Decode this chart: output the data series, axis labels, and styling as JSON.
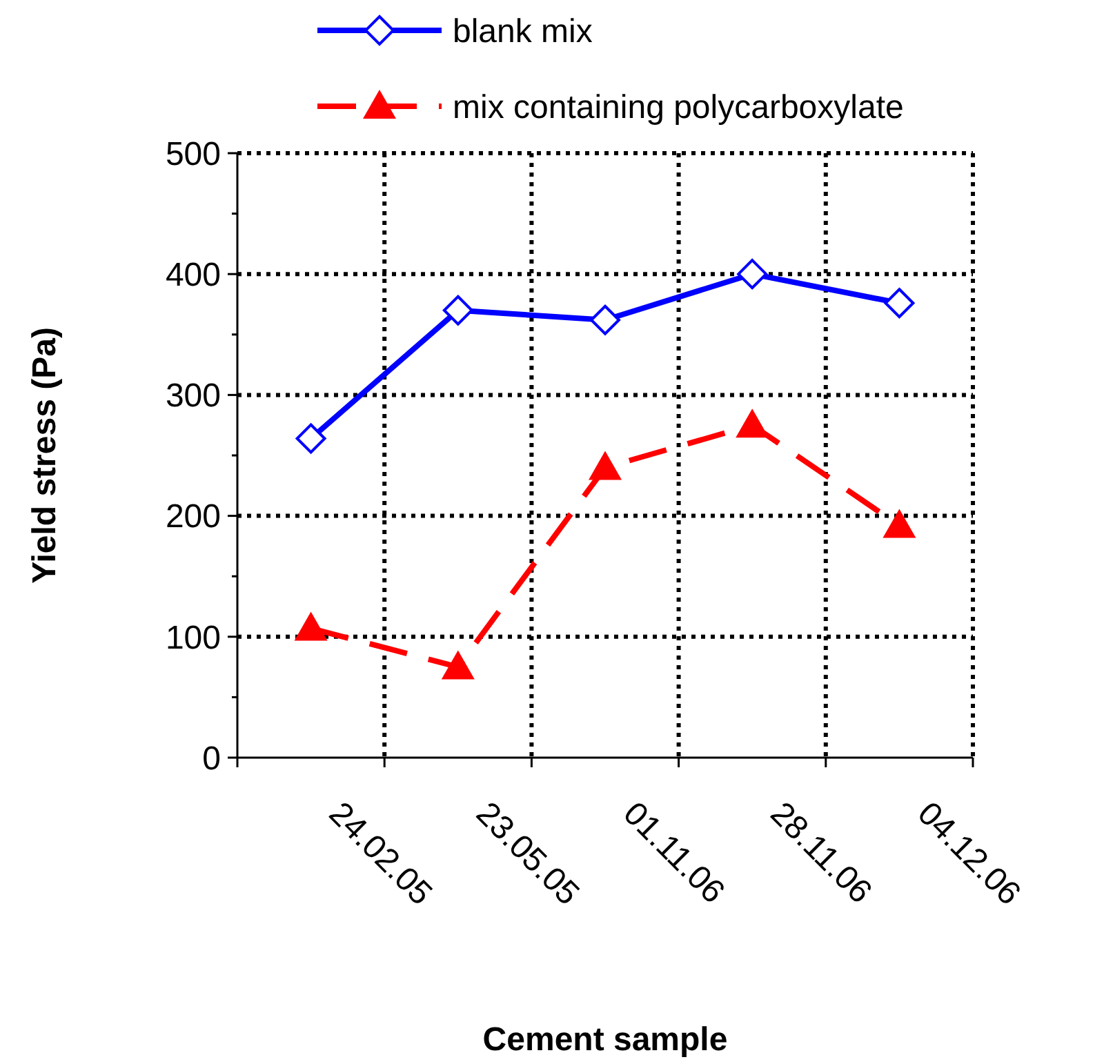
{
  "chart_data": {
    "type": "line",
    "xlabel": "Cement sample",
    "ylabel": "Yield stress (Pa)",
    "categories": [
      "24.02.05",
      "23.05.05",
      "01.11.06",
      "28.11.06",
      "04.12.06"
    ],
    "series": [
      {
        "name": "blank mix",
        "color": "#0000ff",
        "values": [
          264,
          370,
          362,
          400,
          376
        ],
        "marker": "diamond",
        "line_style": "solid"
      },
      {
        "name": "mix containing polycarboxylate",
        "color": "#ff0000",
        "values": [
          107,
          75,
          240,
          275,
          192
        ],
        "marker": "triangle",
        "line_style": "dashed"
      }
    ],
    "ylim": [
      0,
      500
    ],
    "yticks": [
      0,
      100,
      200,
      300,
      400,
      500
    ],
    "grid": true,
    "legend": "top"
  }
}
